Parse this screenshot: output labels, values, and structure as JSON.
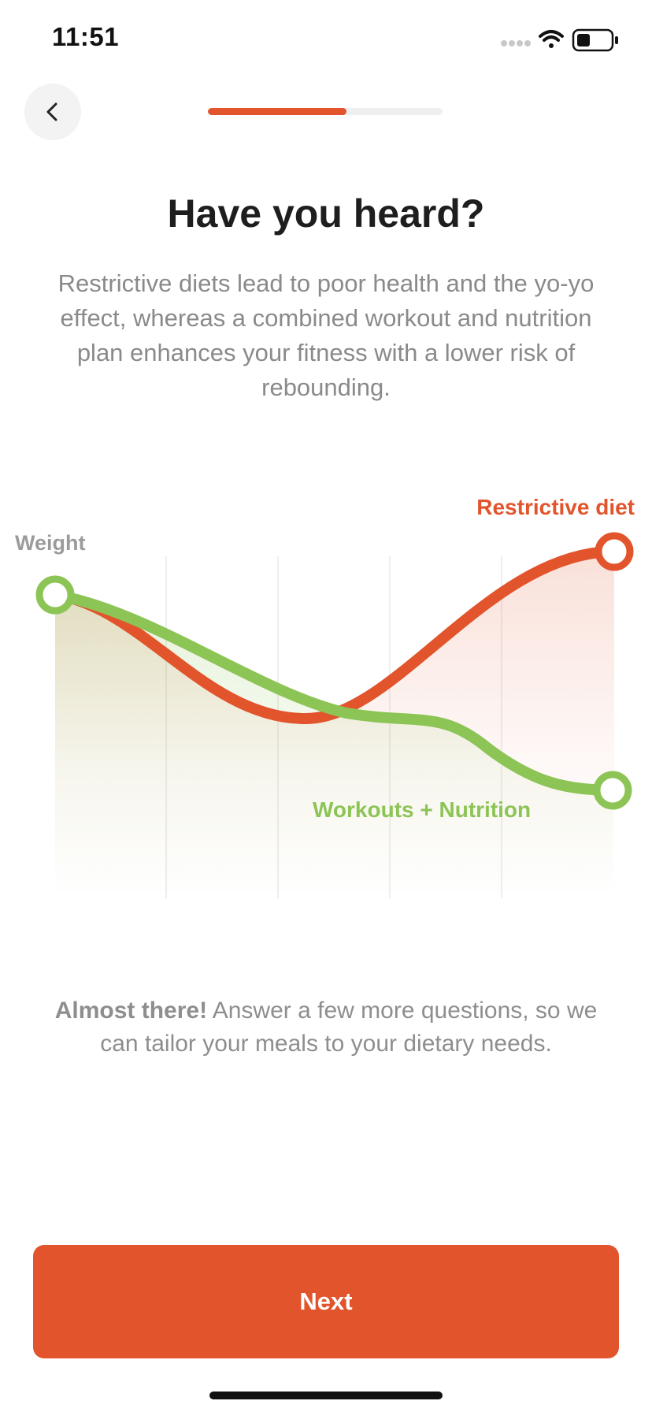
{
  "status_bar": {
    "time": "11:51",
    "icons": [
      "signal-dots-icon",
      "wifi-icon",
      "battery-icon"
    ]
  },
  "header": {
    "back_icon": "chevron-left-icon",
    "progress": 0.59
  },
  "content": {
    "title": "Have you heard?",
    "subtitle": "Restrictive diets lead to poor health and the yo-yo effect, whereas a combined workout and nutrition plan enhances your fitness with a lower risk of rebounding."
  },
  "chart_data": {
    "type": "line",
    "ylabel": "Weight",
    "series": [
      {
        "name": "Restrictive diet",
        "color": "#e1542c"
      },
      {
        "name": "Workouts + Nutrition",
        "color": "#8dc456"
      }
    ],
    "grid": true
  },
  "footer": {
    "note_bold": "Almost there!",
    "note_rest": " Answer a few more questions, so we can tailor your meals to your dietary needs."
  },
  "actions": {
    "next_label": "Next"
  },
  "colors": {
    "accent": "#e1542c",
    "green": "#8dc456"
  }
}
